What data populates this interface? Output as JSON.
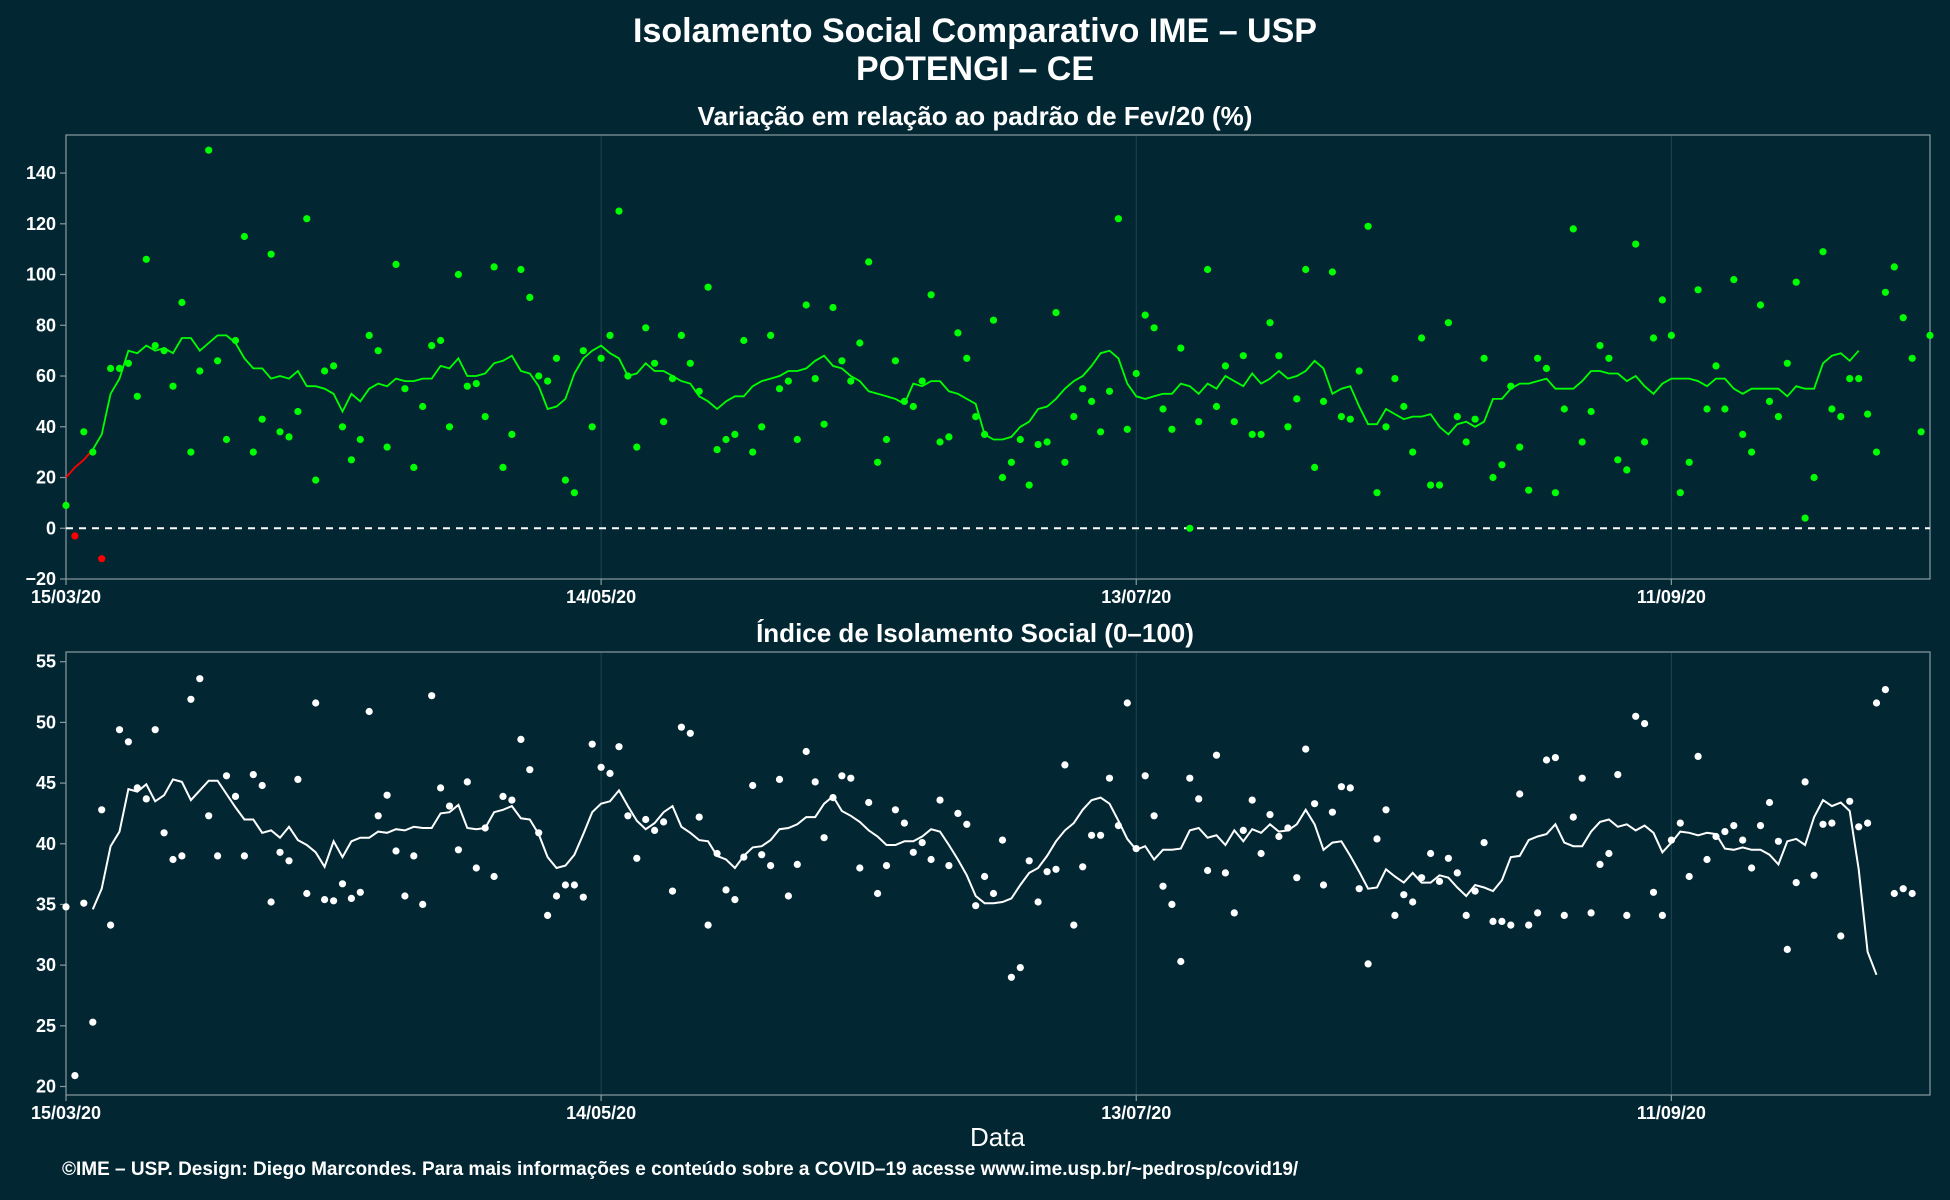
{
  "title_line1": "Isolamento Social Comparativo IME – USP",
  "title_line2": "POTENGI – CE",
  "xlabel": "Data",
  "footer": "©IME – USP. Design: Diego Marcondes. Para mais informações e conteúdo sobre a COVID–19 acesse www.ime.usp.br/~pedrosp/covid19/",
  "colors": {
    "background": "#022733",
    "green": "#00ff00",
    "red": "#ff0000",
    "white": "#ffffff",
    "frame": "#8a9aa0"
  },
  "x_ticks": [
    "15/03/20",
    "14/05/20",
    "13/07/20",
    "11/09/20"
  ],
  "chart_data": [
    {
      "type": "scatter",
      "title": "Variação em relação ao padrão de Fev/20 (%)",
      "x_start": "15/03/20",
      "x_end": "08/10/20",
      "ylim": [
        -20,
        155
      ],
      "y_ticks": [
        "−20",
        "0",
        "20",
        "40",
        "60",
        "80",
        "100",
        "120",
        "140"
      ],
      "y_tick_values": [
        -20,
        0,
        20,
        40,
        60,
        80,
        100,
        120,
        140
      ],
      "reference_line": 0,
      "points": [
        9,
        -3,
        38,
        30,
        -12,
        63,
        63,
        65,
        52,
        106,
        72,
        70,
        56,
        89,
        30,
        62,
        149,
        66,
        35,
        74,
        115,
        30,
        43,
        108,
        38,
        36,
        46,
        122,
        19,
        62,
        64,
        40,
        27,
        35,
        76,
        70,
        32,
        104,
        55,
        24,
        48,
        72,
        74,
        40,
        100,
        56,
        57,
        44,
        103,
        24,
        37,
        102,
        91,
        60,
        58,
        67,
        19,
        14,
        70,
        40,
        67,
        76,
        125,
        60,
        32,
        79,
        65,
        42,
        59,
        76,
        65,
        54,
        95,
        31,
        35,
        37,
        74,
        30,
        40,
        76,
        55,
        58,
        35,
        88,
        59,
        41,
        87,
        66,
        58,
        73,
        105,
        26,
        35,
        66,
        50,
        48,
        58,
        92,
        34,
        36,
        77,
        67,
        44,
        37,
        82,
        20,
        26,
        35,
        17,
        33,
        34,
        85,
        26,
        44,
        55,
        50,
        38,
        54,
        122,
        39,
        61,
        84,
        79,
        47,
        39,
        71,
        0,
        42,
        102,
        48,
        64,
        42,
        68,
        37,
        37,
        81,
        68,
        40,
        51,
        102,
        24,
        50,
        101,
        44,
        43,
        62,
        119,
        14,
        40,
        59,
        48,
        30,
        75,
        17,
        17,
        81,
        44,
        34,
        43,
        67,
        20,
        25,
        56,
        32,
        15,
        67,
        63,
        14,
        47,
        118,
        34,
        46,
        72,
        67,
        27,
        23,
        112,
        34,
        75,
        90,
        76,
        14,
        26,
        94,
        47,
        64,
        47,
        98,
        37,
        30,
        88,
        50,
        44,
        65,
        97,
        4,
        20,
        109,
        47,
        44,
        59,
        59,
        45,
        30,
        93,
        103,
        83,
        67,
        38,
        76
      ],
      "moving_average": [
        20,
        24,
        27,
        31,
        37,
        53,
        59,
        70,
        69,
        72,
        70,
        71,
        69,
        75,
        75,
        70,
        73,
        76,
        76,
        73,
        67,
        63,
        63,
        59,
        60,
        59,
        62,
        56,
        56,
        55,
        53,
        46,
        53,
        50,
        55,
        57,
        56,
        59,
        58,
        58,
        59,
        59,
        64,
        63,
        67,
        60,
        60,
        61,
        65,
        66,
        68,
        62,
        61,
        56,
        47,
        48,
        51,
        61,
        67,
        70,
        72,
        69,
        67,
        60,
        61,
        65,
        62,
        62,
        60,
        58,
        57,
        52,
        50,
        47,
        50,
        52,
        52,
        56,
        58,
        59,
        60,
        62,
        62,
        63,
        66,
        68,
        64,
        63,
        60,
        58,
        54,
        53,
        52,
        51,
        49,
        57,
        56,
        58,
        58,
        54,
        53,
        51,
        49,
        37,
        35,
        35,
        36,
        40,
        42,
        47,
        48,
        51,
        55,
        58,
        60,
        64,
        69,
        70,
        67,
        57,
        52,
        51,
        52,
        53,
        53,
        57,
        56,
        53,
        57,
        55,
        60,
        58,
        56,
        61,
        57,
        59,
        62,
        59,
        60,
        62,
        66,
        63,
        53,
        55,
        56,
        48,
        41,
        41,
        47,
        45,
        43,
        44,
        44,
        45,
        40,
        37,
        41,
        42,
        40,
        42,
        51,
        51,
        55,
        57,
        57,
        58,
        59,
        55,
        55,
        55,
        58,
        62,
        62,
        61,
        61,
        58,
        60,
        56,
        53,
        57,
        59,
        59,
        59,
        58,
        56,
        59,
        59,
        55,
        53,
        55,
        55,
        55,
        55,
        52,
        56,
        55,
        55,
        65,
        68,
        69,
        66,
        70
      ]
    },
    {
      "type": "scatter",
      "title": "Índice de Isolamento Social (0–100)",
      "x_start": "15/03/20",
      "x_end": "08/10/20",
      "ylim": [
        19.3,
        55.8
      ],
      "y_ticks": [
        "20",
        "25",
        "30",
        "35",
        "40",
        "45",
        "50",
        "55"
      ],
      "y_tick_values": [
        20,
        25,
        30,
        35,
        40,
        45,
        50,
        55
      ],
      "points": [
        34.8,
        20.9,
        35.1,
        25.3,
        42.8,
        33.3,
        49.4,
        48.4,
        44.6,
        43.7,
        49.4,
        40.9,
        38.7,
        39.0,
        51.9,
        53.6,
        42.3,
        39.0,
        45.6,
        43.9,
        39.0,
        45.7,
        44.8,
        35.2,
        39.3,
        38.6,
        45.3,
        35.9,
        51.6,
        35.4,
        35.3,
        36.7,
        35.5,
        36.0,
        50.9,
        42.3,
        44.0,
        39.4,
        35.7,
        39.0,
        35.0,
        52.2,
        44.6,
        43.1,
        39.5,
        45.1,
        38.0,
        41.3,
        37.3,
        43.9,
        43.6,
        48.6,
        46.1,
        40.9,
        34.1,
        35.7,
        36.6,
        36.6,
        35.6,
        48.2,
        46.3,
        45.8,
        48.0,
        42.3,
        38.8,
        42.0,
        41.1,
        41.8,
        36.1,
        49.6,
        49.1,
        42.2,
        33.3,
        39.2,
        36.2,
        35.4,
        38.9,
        44.8,
        39.1,
        38.2,
        45.3,
        35.7,
        38.3,
        47.6,
        45.1,
        40.5,
        43.8,
        45.6,
        45.4,
        38.0,
        43.4,
        35.9,
        38.2,
        42.8,
        41.7,
        39.3,
        40.1,
        38.7,
        43.6,
        38.2,
        42.5,
        41.6,
        34.9,
        37.3,
        35.9,
        40.3,
        29.0,
        29.8,
        38.6,
        35.2,
        37.7,
        37.9,
        46.5,
        33.3,
        38.1,
        40.7,
        40.7,
        45.4,
        41.5,
        51.6,
        39.6,
        45.6,
        42.3,
        36.5,
        35.0,
        30.3,
        45.4,
        43.7,
        37.8,
        47.3,
        37.6,
        34.3,
        41.1,
        43.6,
        39.2,
        42.4,
        40.6,
        41.3,
        37.2,
        47.8,
        43.3,
        36.6,
        42.6,
        44.7,
        44.6,
        36.3,
        30.1,
        40.4,
        42.8,
        34.1,
        35.8,
        35.2,
        37.2,
        39.2,
        36.9,
        38.8,
        37.6,
        34.1,
        36.1,
        40.1,
        33.6,
        33.6,
        33.3,
        44.1,
        33.3,
        34.3,
        46.9,
        47.1,
        34.1,
        42.2,
        45.4,
        34.3,
        38.3,
        39.2,
        45.7,
        34.1,
        50.5,
        49.9,
        36.0,
        34.1,
        40.3,
        41.7,
        37.3,
        47.2,
        38.7,
        40.6,
        41.0,
        41.5,
        40.3,
        38.0,
        41.5,
        43.4,
        40.2,
        31.3,
        36.8,
        45.1,
        37.4,
        41.6,
        41.7,
        32.4,
        43.5,
        41.4,
        41.7,
        51.6,
        52.7,
        35.9,
        36.3,
        35.9
      ],
      "moving_average": [
        null,
        null,
        null,
        34.6,
        36.3,
        39.8,
        41.0,
        44.5,
        44.3,
        44.9,
        43.5,
        44.0,
        45.3,
        45.1,
        43.6,
        44.4,
        45.2,
        45.2,
        44.1,
        43.0,
        42.0,
        42.0,
        40.9,
        41.1,
        40.5,
        41.4,
        40.3,
        39.9,
        39.3,
        38.1,
        40.2,
        38.9,
        40.2,
        40.5,
        40.5,
        41.0,
        40.9,
        41.2,
        41.1,
        41.4,
        41.3,
        41.3,
        42.5,
        42.6,
        43.2,
        41.3,
        41.2,
        41.3,
        42.6,
        42.8,
        43.1,
        42.1,
        42.0,
        40.8,
        38.9,
        38.0,
        38.2,
        39.1,
        40.8,
        42.6,
        43.3,
        43.5,
        44.4,
        43.1,
        41.9,
        41.2,
        41.7,
        42.6,
        43.1,
        41.4,
        40.9,
        40.3,
        40.2,
        39.0,
        38.7,
        38.0,
        39.0,
        39.7,
        39.8,
        40.3,
        41.2,
        41.3,
        41.6,
        42.2,
        42.2,
        43.3,
        43.9,
        42.7,
        42.3,
        41.8,
        41.1,
        40.6,
        39.9,
        39.9,
        40.2,
        40.2,
        40.6,
        41.2,
        41.0,
        39.9,
        38.7,
        37.4,
        35.7,
        35.1,
        35.1,
        35.2,
        35.5,
        36.6,
        37.6,
        38.0,
        39.0,
        40.2,
        41.1,
        41.7,
        42.8,
        43.6,
        43.8,
        43.3,
        41.9,
        40.4,
        39.5,
        39.8,
        38.7,
        39.5,
        39.5,
        39.6,
        41.1,
        41.3,
        40.5,
        40.7,
        39.9,
        41.1,
        40.2,
        41.2,
        40.9,
        41.6,
        41.0,
        41.1,
        41.6,
        42.8,
        41.6,
        39.5,
        40.1,
        40.2,
        39.0,
        37.7,
        36.3,
        36.4,
        37.9,
        37.3,
        36.8,
        37.6,
        36.8,
        36.8,
        37.4,
        37.2,
        36.4,
        35.7,
        36.6,
        36.4,
        36.1,
        37.0,
        38.9,
        39.0,
        40.3,
        40.6,
        40.8,
        41.6,
        40.1,
        39.8,
        39.8,
        41.0,
        41.8,
        42.0,
        41.4,
        41.6,
        41.1,
        41.5,
        40.9,
        39.3,
        40.1,
        41.0,
        40.9,
        40.7,
        40.9,
        40.8,
        39.6,
        39.5,
        39.7,
        39.5,
        39.5,
        39.1,
        38.3,
        40.2,
        40.4,
        39.9,
        42.2,
        43.6,
        43.1,
        43.4,
        42.7,
        37.9,
        31.1,
        29.2
      ],
      "moving_average_offset": 0
    }
  ]
}
